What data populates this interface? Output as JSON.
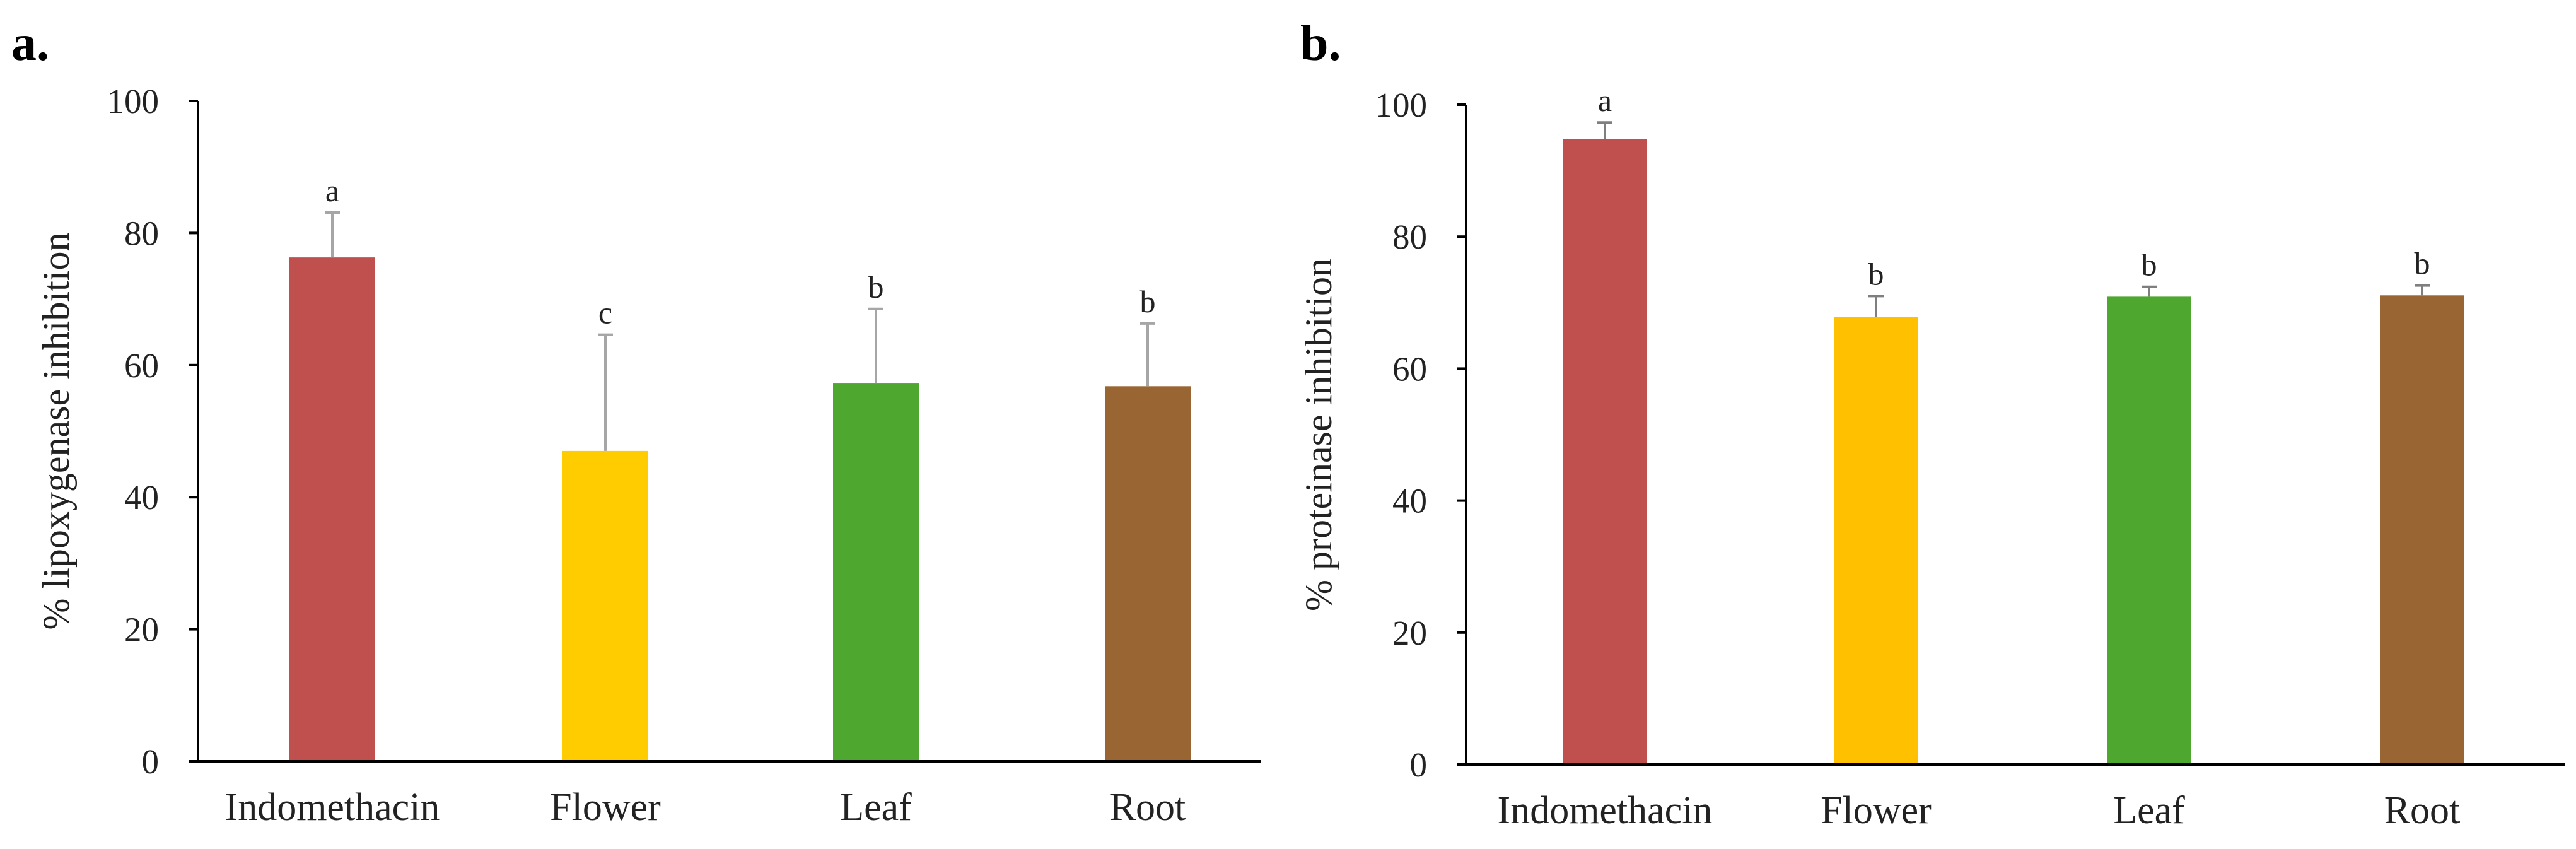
{
  "chart_data": [
    {
      "panel_label": "a.",
      "type": "bar",
      "categories": [
        "Indomethacin",
        "Flower",
        "Leaf",
        "Root"
      ],
      "values": [
        76.3,
        47.0,
        57.3,
        56.8
      ],
      "errors": [
        6.8,
        17.6,
        11.2,
        9.5
      ],
      "significance": [
        "a",
        "c",
        "b",
        "b"
      ],
      "colors": [
        "#C0504D",
        "#FFCC00",
        "#4EA72E",
        "#996633"
      ],
      "error_color": "#A6A6A6",
      "title": "",
      "xlabel": "",
      "ylabel": "% lipoxygenase inhibition",
      "ylim": [
        0,
        100
      ],
      "yticks": [
        "0",
        "20",
        "40",
        "60",
        "80",
        "100"
      ],
      "grid": false
    },
    {
      "panel_label": "b.",
      "type": "bar",
      "categories": [
        "Indomethacin",
        "Flower",
        "Leaf",
        "Root"
      ],
      "values": [
        94.8,
        67.8,
        70.9,
        71.1
      ],
      "errors": [
        2.5,
        3.2,
        1.5,
        1.5
      ],
      "significance": [
        "a",
        "b",
        "b",
        "b"
      ],
      "colors": [
        "#C0504D",
        "#FFC000",
        "#4EA72E",
        "#996633"
      ],
      "error_color": "#7F7F7F",
      "title": "",
      "xlabel": "",
      "ylabel": "%  proteinase inhibition",
      "ylim": [
        0,
        100
      ],
      "yticks": [
        "0",
        "20",
        "40",
        "60",
        "80",
        "100"
      ],
      "grid": false
    }
  ]
}
